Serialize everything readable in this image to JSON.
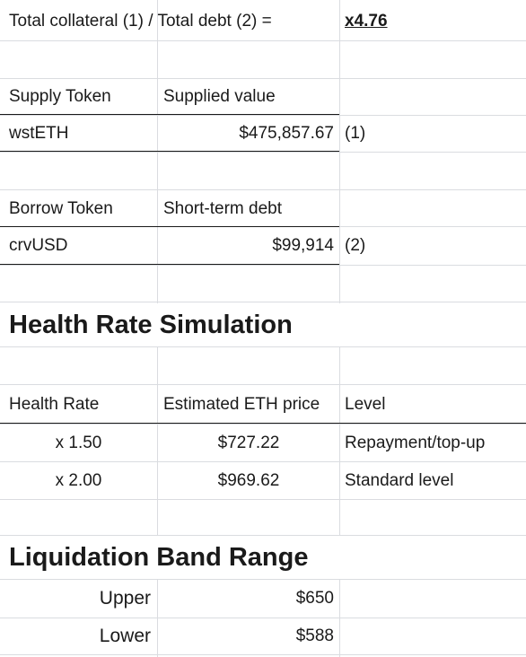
{
  "ratio_row": {
    "label": "Total collateral (1) / Total debt (2) =",
    "value": "x4.76"
  },
  "supply": {
    "header_token": "Supply Token",
    "header_value": "Supplied value",
    "token": "wstETH",
    "value": "$475,857.67",
    "ref": "(1)"
  },
  "borrow": {
    "header_token": "Borrow Token",
    "header_value": "Short-term debt",
    "token": "crvUSD",
    "value": "$99,914",
    "ref": "(2)"
  },
  "health_sim": {
    "title": "Health Rate Simulation",
    "headers": [
      "Health Rate",
      "Estimated ETH price",
      "Level"
    ],
    "rows": [
      {
        "rate": "x 1.50",
        "price": "$727.22",
        "level": "Repayment/top-up"
      },
      {
        "rate": "x 2.00",
        "price": "$969.62",
        "level": "Standard level"
      }
    ]
  },
  "liquidation": {
    "title": "Liquidation Band Range",
    "rows": [
      {
        "label": "Upper",
        "value": "$650"
      },
      {
        "label": "Lower",
        "value": "$588"
      }
    ]
  }
}
